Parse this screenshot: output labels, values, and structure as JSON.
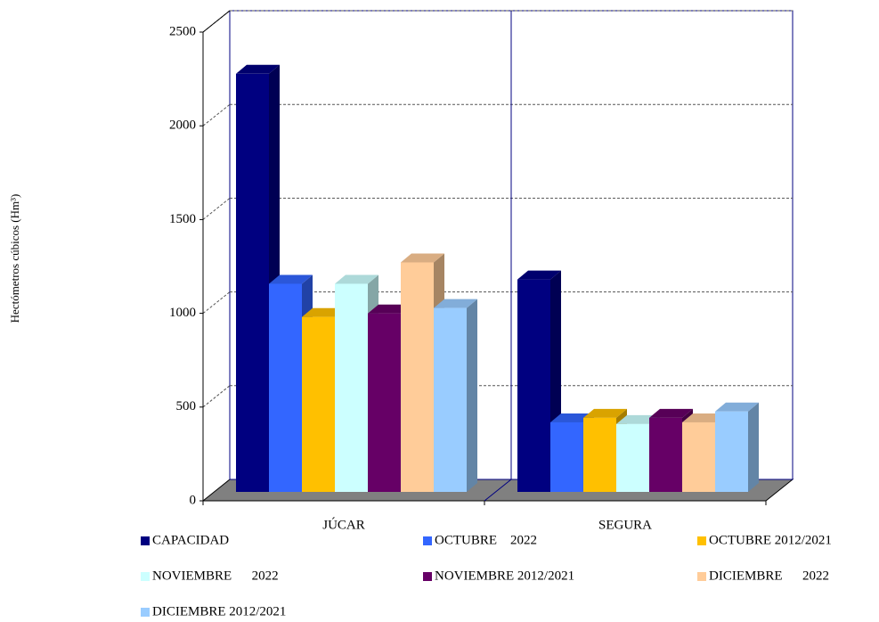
{
  "chart_data": {
    "type": "bar",
    "y_label": "Hectómetros cúbicos (Hm³)",
    "categories": [
      "JÚCAR",
      "SEGURA"
    ],
    "series": [
      {
        "name": "CAPACIDAD",
        "color": "#000080",
        "values": [
          2230,
          1133
        ]
      },
      {
        "name": "OCTUBRE    2022",
        "color": "#3366ff",
        "values": [
          1110,
          371
        ]
      },
      {
        "name": "OCTUBRE 2012/2021",
        "color": "#ffc000",
        "values": [
          933,
          395
        ]
      },
      {
        "name": "NOVIEMBRE      2022",
        "color": "#ccffff",
        "values": [
          1110,
          362
        ]
      },
      {
        "name": "NOVIEMBRE 2012/2021",
        "color": "#660066",
        "values": [
          952,
          395
        ]
      },
      {
        "name": "DICIEMBRE      2022",
        "color": "#ffcc99",
        "values": [
          1224,
          371
        ]
      },
      {
        "name": "DICIEMBRE 2012/2021",
        "color": "#99ccff",
        "values": [
          981,
          429
        ]
      }
    ],
    "ylim": [
      0,
      2500
    ],
    "yticks": [
      0,
      500,
      1000,
      1500,
      2000,
      2500
    ],
    "grid": true,
    "legend": "bottom"
  }
}
